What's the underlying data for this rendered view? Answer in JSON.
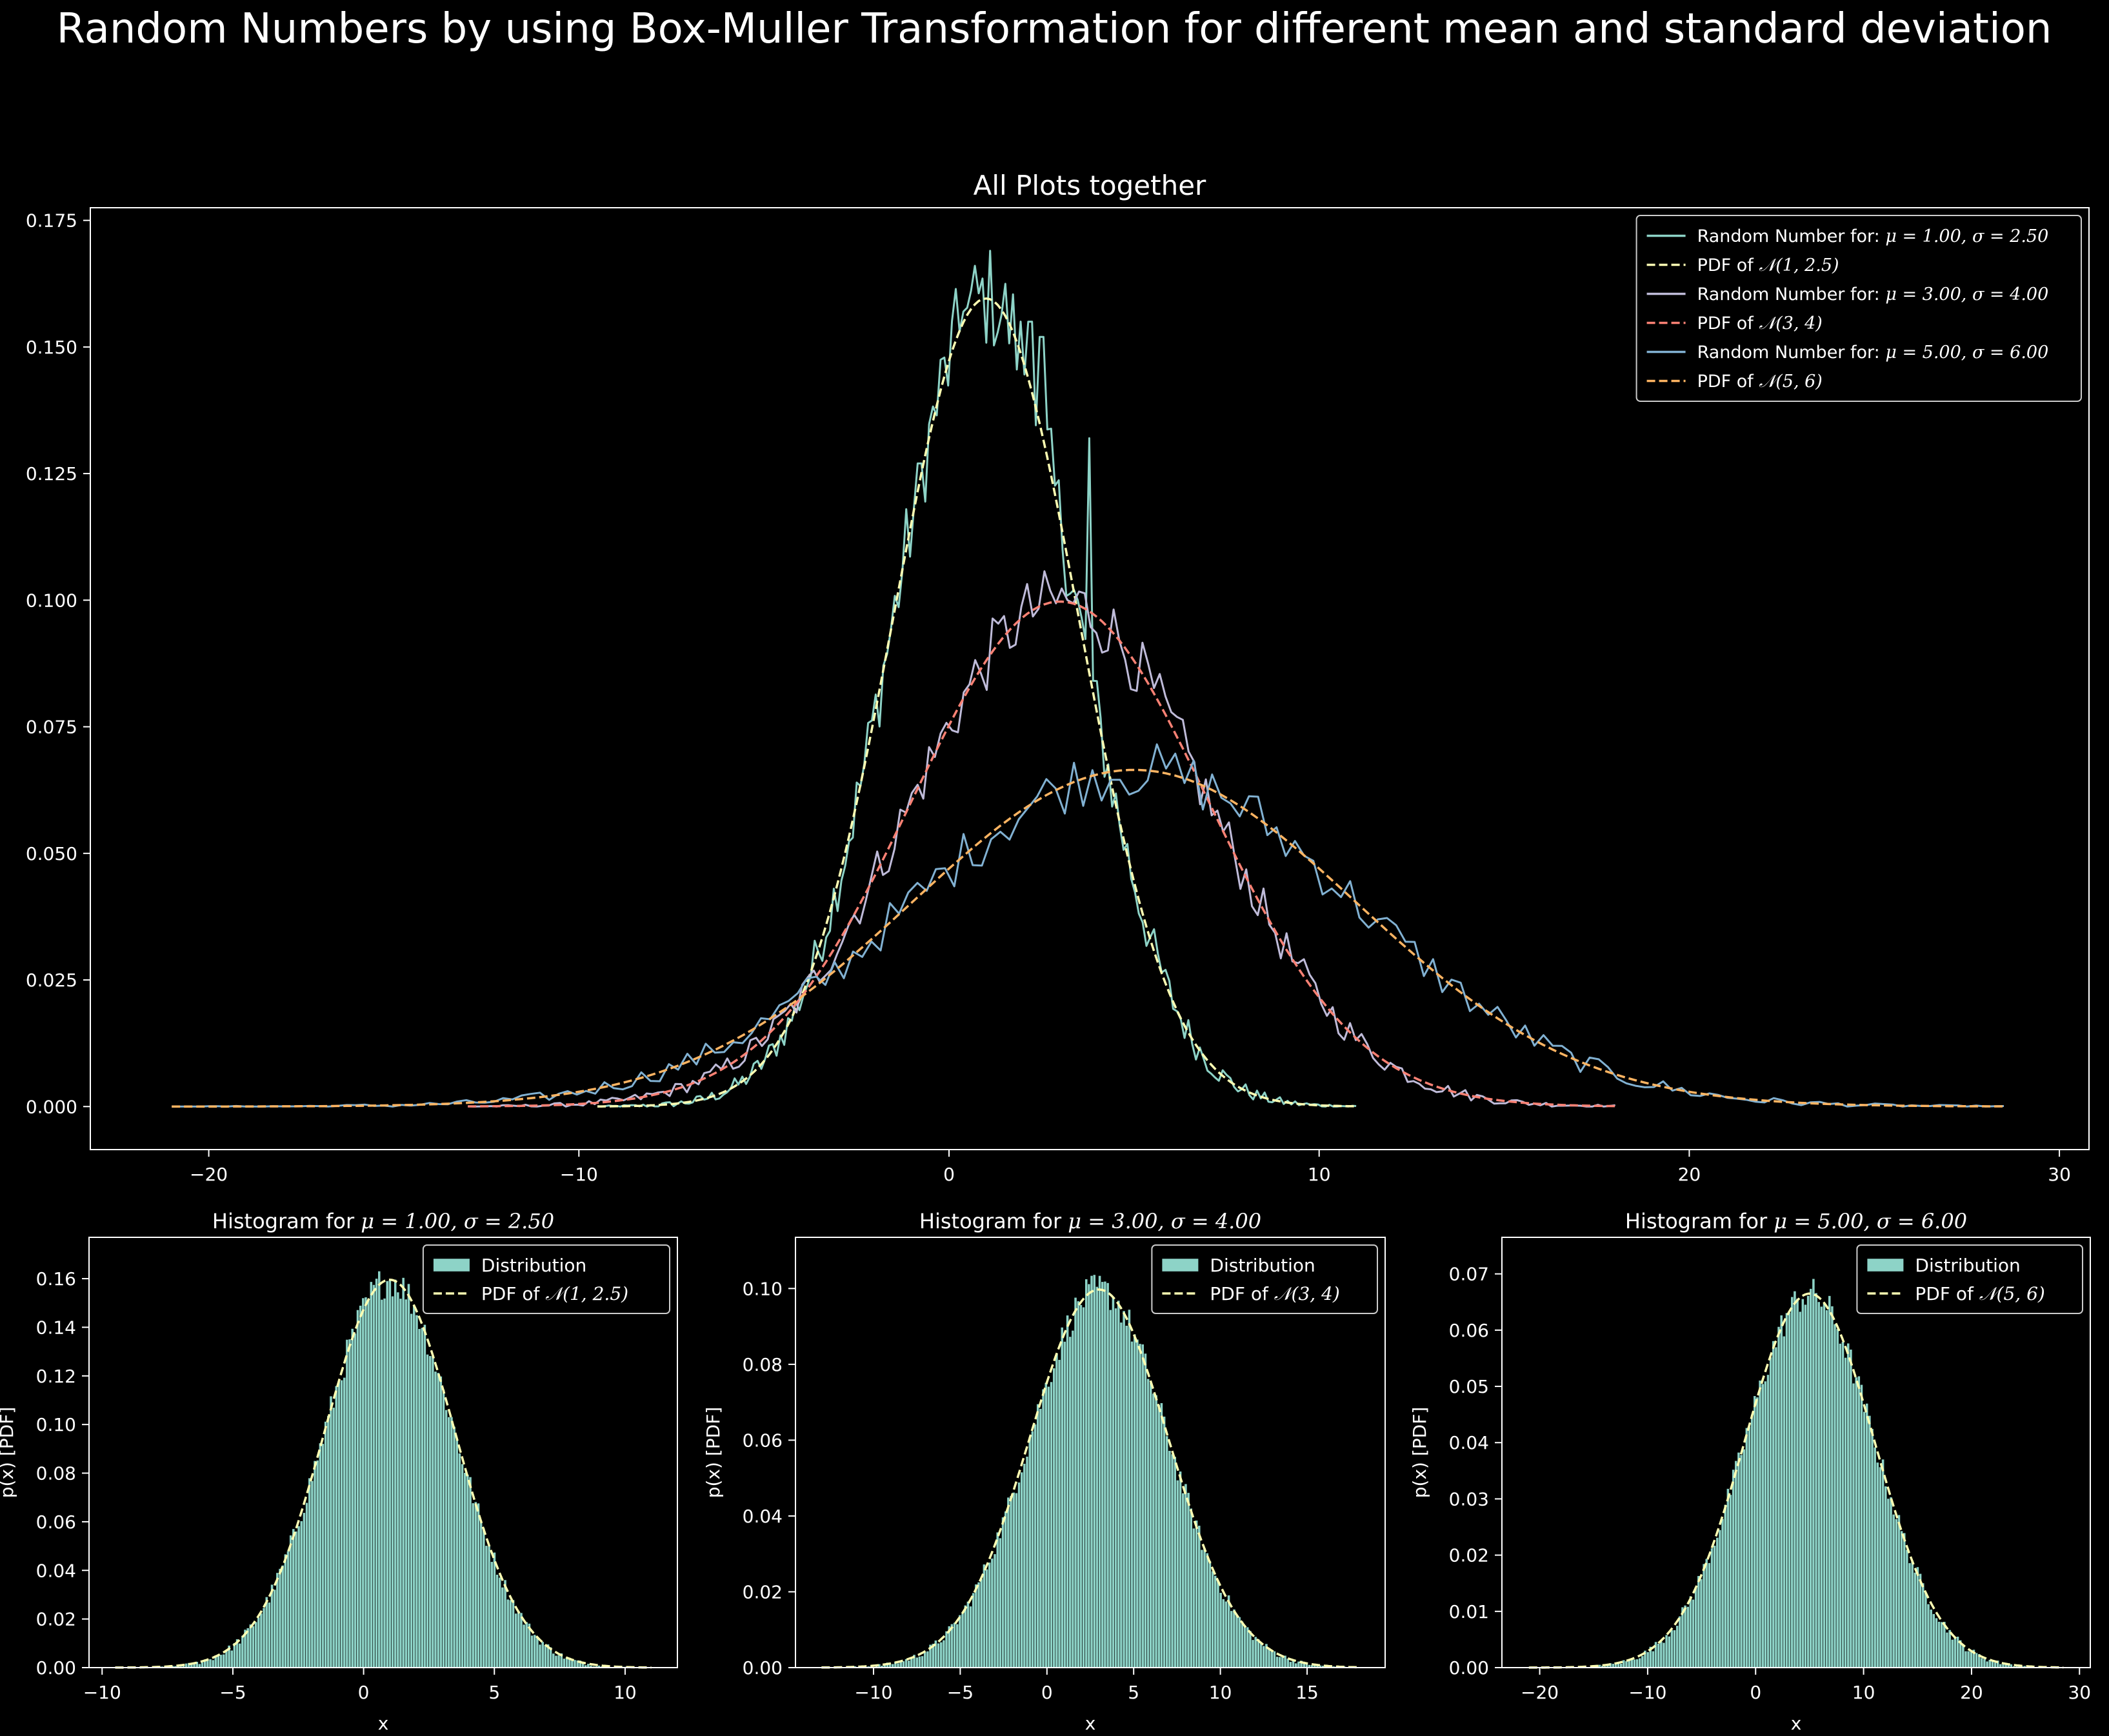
{
  "suptitle": "Random Numbers by using Box-Muller Transformation for different mean and standard deviation",
  "colors": {
    "background": "#000000",
    "foreground": "#ffffff",
    "s1_random": "#8dd3c7",
    "s1_pdf": "#feffb3",
    "s2_random": "#bfbbd9",
    "s2_pdf": "#fa8174",
    "s3_random": "#81b1d2",
    "s3_pdf": "#fdb462",
    "hist_bar": "#8dd3c7",
    "hist_pdf": "#feffb3"
  },
  "chart_data": [
    {
      "id": "main",
      "type": "line",
      "title": "All Plots together",
      "xlabel": "",
      "ylabel": "",
      "xlim": [
        -23.2,
        30.8
      ],
      "ylim": [
        -0.0085,
        0.1775
      ],
      "xticks": [
        -20,
        -10,
        0,
        10,
        20,
        30
      ],
      "xtick_labels": [
        "−20",
        "−10",
        "0",
        "10",
        "20",
        "30"
      ],
      "yticks": [
        0.0,
        0.025,
        0.05,
        0.075,
        0.1,
        0.125,
        0.15,
        0.175
      ],
      "ytick_labels": [
        "0.000",
        "0.025",
        "0.050",
        "0.075",
        "0.100",
        "0.125",
        "0.150",
        "0.175"
      ],
      "grid": false,
      "legend_position": "upper-right",
      "legend": [
        {
          "label": "Random Number for: ",
          "math": "μ = 1.00, σ = 2.50",
          "style": "solid",
          "color_key": "s1_random"
        },
        {
          "label": "PDF of ",
          "math": "𝒩(1, 2.5)",
          "style": "dashed",
          "color_key": "s1_pdf"
        },
        {
          "label": "Random Number for: ",
          "math": "μ = 3.00, σ = 4.00",
          "style": "solid",
          "color_key": "s2_random"
        },
        {
          "label": "PDF of ",
          "math": "𝒩(3, 4)",
          "style": "dashed",
          "color_key": "s2_pdf"
        },
        {
          "label": "Random Number for: ",
          "math": "μ = 5.00, σ = 6.00",
          "style": "solid",
          "color_key": "s3_random"
        },
        {
          "label": "PDF of ",
          "math": "𝒩(5, 6)",
          "style": "dashed",
          "color_key": "s3_pdf"
        }
      ],
      "series": [
        {
          "kind": "random",
          "mu": 1.0,
          "sigma": 2.5,
          "x_range": [
            -9.5,
            11.0
          ],
          "color_key": "s1_random",
          "peaks": [
            [
              1.1,
              0.169
            ],
            [
              0.4,
              0.157
            ],
            [
              2.2,
              0.155
            ],
            [
              -0.8,
              0.127
            ],
            [
              3.8,
              0.132
            ],
            [
              2.5,
              0.152
            ]
          ]
        },
        {
          "kind": "pdf",
          "mu": 1.0,
          "sigma": 2.5,
          "x_range": [
            -9.5,
            11.0
          ],
          "color_key": "s1_pdf"
        },
        {
          "kind": "random",
          "mu": 3.0,
          "sigma": 4.0,
          "x_range": [
            -13.0,
            18.0
          ],
          "color_key": "s2_random"
        },
        {
          "kind": "pdf",
          "mu": 3.0,
          "sigma": 4.0,
          "x_range": [
            -13.0,
            18.0
          ],
          "color_key": "s2_pdf"
        },
        {
          "kind": "random",
          "mu": 5.0,
          "sigma": 6.0,
          "x_range": [
            -21.0,
            28.5
          ],
          "color_key": "s3_random"
        },
        {
          "kind": "pdf",
          "mu": 5.0,
          "sigma": 6.0,
          "x_range": [
            -21.0,
            28.5
          ],
          "color_key": "s3_pdf"
        }
      ]
    },
    {
      "id": "hist1",
      "type": "bar",
      "title": "Histogram for ",
      "title_math": "μ = 1.00, σ = 2.50",
      "xlabel": "x",
      "ylabel": "p(x) [PDF]",
      "mu": 1.0,
      "sigma": 2.5,
      "x_range": [
        -9.5,
        11.0
      ],
      "xlim": [
        -10.5,
        12.0
      ],
      "ylim": [
        0.0,
        0.177
      ],
      "xticks": [
        -10,
        -5,
        0,
        5,
        10
      ],
      "xtick_labels": [
        "−10",
        "−5",
        "0",
        "5",
        "10"
      ],
      "yticks": [
        0.0,
        0.02,
        0.04,
        0.06,
        0.08,
        0.1,
        0.12,
        0.14,
        0.16
      ],
      "ytick_labels": [
        "0.00",
        "0.02",
        "0.04",
        "0.06",
        "0.08",
        "0.10",
        "0.12",
        "0.14",
        "0.16"
      ],
      "legend_position": "upper-right",
      "legend": [
        {
          "label": "Distribution",
          "math": "",
          "style": "patch",
          "color_key": "hist_bar"
        },
        {
          "label": "PDF of ",
          "math": "𝒩(1, 2.5)",
          "style": "dashed",
          "color_key": "hist_pdf"
        }
      ]
    },
    {
      "id": "hist2",
      "type": "bar",
      "title": "Histogram for ",
      "title_math": "μ = 3.00, σ = 4.00",
      "xlabel": "x",
      "ylabel": "p(x) [PDF]",
      "mu": 3.0,
      "sigma": 4.0,
      "x_range": [
        -13.0,
        18.0
      ],
      "xlim": [
        -14.5,
        19.5
      ],
      "ylim": [
        0.0,
        0.1135
      ],
      "xticks": [
        -10,
        -5,
        0,
        5,
        10,
        15
      ],
      "xtick_labels": [
        "−10",
        "−5",
        "0",
        "5",
        "10",
        "15"
      ],
      "yticks": [
        0.0,
        0.02,
        0.04,
        0.06,
        0.08,
        0.1
      ],
      "ytick_labels": [
        "0.00",
        "0.02",
        "0.04",
        "0.06",
        "0.08",
        "0.10"
      ],
      "legend_position": "upper-right",
      "legend": [
        {
          "label": "Distribution",
          "math": "",
          "style": "patch",
          "color_key": "hist_bar"
        },
        {
          "label": "PDF of ",
          "math": "𝒩(3, 4)",
          "style": "dashed",
          "color_key": "hist_pdf"
        }
      ]
    },
    {
      "id": "hist3",
      "type": "bar",
      "title": "Histogram for ",
      "title_math": "μ = 5.00, σ = 6.00",
      "xlabel": "x",
      "ylabel": "p(x) [PDF]",
      "mu": 5.0,
      "sigma": 6.0,
      "x_range": [
        -21.0,
        28.5
      ],
      "xlim": [
        -23.5,
        31.0
      ],
      "ylim": [
        0.0,
        0.0765
      ],
      "xticks": [
        -20,
        -10,
        0,
        10,
        20,
        30
      ],
      "xtick_labels": [
        "−20",
        "−10",
        "0",
        "10",
        "20",
        "30"
      ],
      "yticks": [
        0.0,
        0.01,
        0.02,
        0.03,
        0.04,
        0.05,
        0.06,
        0.07
      ],
      "ytick_labels": [
        "0.00",
        "0.01",
        "0.02",
        "0.03",
        "0.04",
        "0.05",
        "0.06",
        "0.07"
      ],
      "legend_position": "upper-right",
      "legend": [
        {
          "label": "Distribution",
          "math": "",
          "style": "patch",
          "color_key": "hist_bar"
        },
        {
          "label": "PDF of ",
          "math": "𝒩(5, 6)",
          "style": "dashed",
          "color_key": "hist_pdf"
        }
      ]
    }
  ]
}
